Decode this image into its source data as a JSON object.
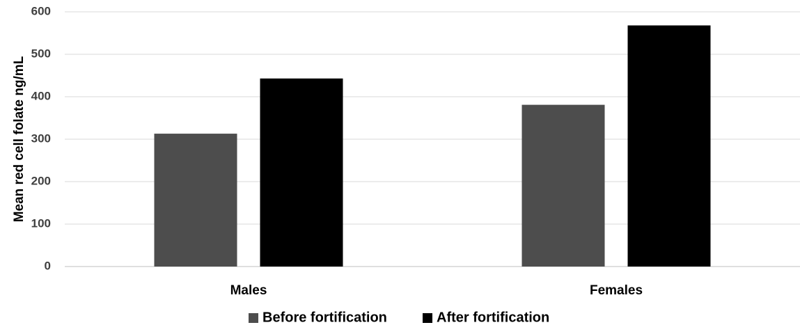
{
  "chart_data": {
    "type": "bar",
    "title": "",
    "xlabel": "",
    "ylabel": "Mean red cell folate ng/mL",
    "ylim": [
      0,
      600
    ],
    "yticks": [
      0,
      100,
      200,
      300,
      400,
      500,
      600
    ],
    "grid": true,
    "legend_position": "bottom",
    "categories": [
      "Males",
      "Females"
    ],
    "series": [
      {
        "name": "Before fortification",
        "color": "#4d4d4d",
        "values": [
          313,
          381
        ]
      },
      {
        "name": "After fortification",
        "color": "#000000",
        "values": [
          443,
          568
        ]
      }
    ]
  }
}
